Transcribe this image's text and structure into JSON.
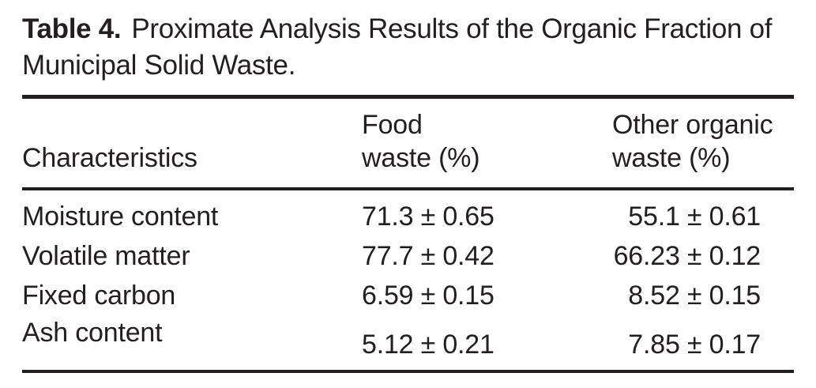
{
  "meta": {
    "background_color": "#ffffff",
    "text_color": "#231f20",
    "rule_color": "#231f20"
  },
  "caption": {
    "label": "Table 4.",
    "line1": "Proximate Analysis Results of the Organic Fraction of",
    "line2": "Municipal Solid Waste."
  },
  "table": {
    "header": {
      "characteristics": "Characteristics",
      "food": [
        "Food",
        "waste (%)"
      ],
      "other": [
        "Other organic",
        "waste (%)"
      ]
    },
    "rows": [
      {
        "characteristic": "Moisture content",
        "food_waste": "71.3 ± 0.65",
        "other_organic_waste": "55.1 ± 0.61"
      },
      {
        "characteristic": "Volatile matter",
        "food_waste": "77.7 ± 0.42",
        "other_organic_waste": "66.23 ± 0.12"
      },
      {
        "characteristic": "Fixed carbon",
        "food_waste": "6.59 ± 0.15",
        "other_organic_waste": "8.52 ± 0.15"
      },
      {
        "characteristic": "Ash content",
        "food_waste": "5.12 ± 0.21",
        "other_organic_waste": "7.85 ± 0.17"
      }
    ]
  },
  "chart_data": {
    "type": "table",
    "title": "Table 4. Proximate Analysis Results of the Organic Fraction of Municipal Solid Waste.",
    "columns": [
      "Characteristics",
      "Food waste (%)",
      "Other organic waste (%)"
    ],
    "categories": [
      "Moisture content",
      "Volatile matter",
      "Fixed carbon",
      "Ash content"
    ],
    "series": [
      {
        "name": "Food waste (%)",
        "values": [
          71.3,
          77.7,
          6.59,
          5.12
        ],
        "errors": [
          0.65,
          0.42,
          0.15,
          0.21
        ]
      },
      {
        "name": "Other organic waste (%)",
        "values": [
          55.1,
          66.23,
          8.52,
          7.85
        ],
        "errors": [
          0.61,
          0.12,
          0.15,
          0.17
        ]
      }
    ],
    "rows": [
      [
        "Moisture content",
        "71.3 ± 0.65",
        "55.1 ± 0.61"
      ],
      [
        "Volatile matter",
        "77.7 ± 0.42",
        "66.23 ± 0.12"
      ],
      [
        "Fixed carbon",
        "6.59 ± 0.15",
        "8.52 ± 0.15"
      ],
      [
        "Ash content",
        "5.12 ± 0.21",
        "7.85 ± 0.17"
      ]
    ]
  }
}
